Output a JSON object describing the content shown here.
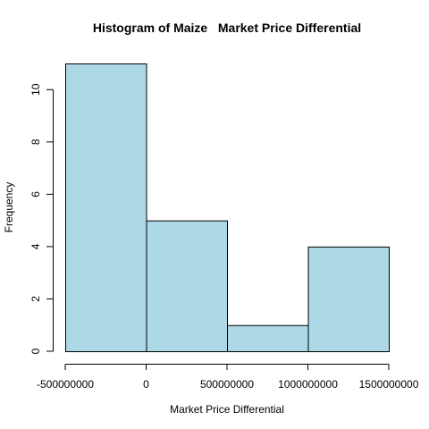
{
  "chart_data": {
    "type": "bar",
    "title": "Histogram of Maize   Market Price Differential",
    "xlabel": "Market Price Differential",
    "ylabel": "Frequency",
    "bins": [
      {
        "start": -500000000,
        "end": 0,
        "count": 11
      },
      {
        "start": 0,
        "end": 500000000,
        "count": 5
      },
      {
        "start": 500000000,
        "end": 1000000000,
        "count": 1
      },
      {
        "start": 1000000000,
        "end": 1500000000,
        "count": 4
      }
    ],
    "x_ticks": [
      {
        "value": -500000000,
        "label": "-500000000"
      },
      {
        "value": 0,
        "label": "0"
      },
      {
        "value": 500000000,
        "label": "500000000"
      },
      {
        "value": 1000000000,
        "label": "1000000000"
      },
      {
        "value": 1500000000,
        "label": "1500000000"
      }
    ],
    "y_ticks": [
      {
        "value": 0,
        "label": "0"
      },
      {
        "value": 2,
        "label": "2"
      },
      {
        "value": 4,
        "label": "4"
      },
      {
        "value": 6,
        "label": "6"
      },
      {
        "value": 8,
        "label": "8"
      },
      {
        "value": 10,
        "label": "10"
      }
    ],
    "xlim": [
      -500000000,
      1500000000
    ],
    "ylim": [
      0,
      11
    ],
    "grid": false,
    "bar_color": "#ADD8E6",
    "bar_border_color": "#000000"
  }
}
